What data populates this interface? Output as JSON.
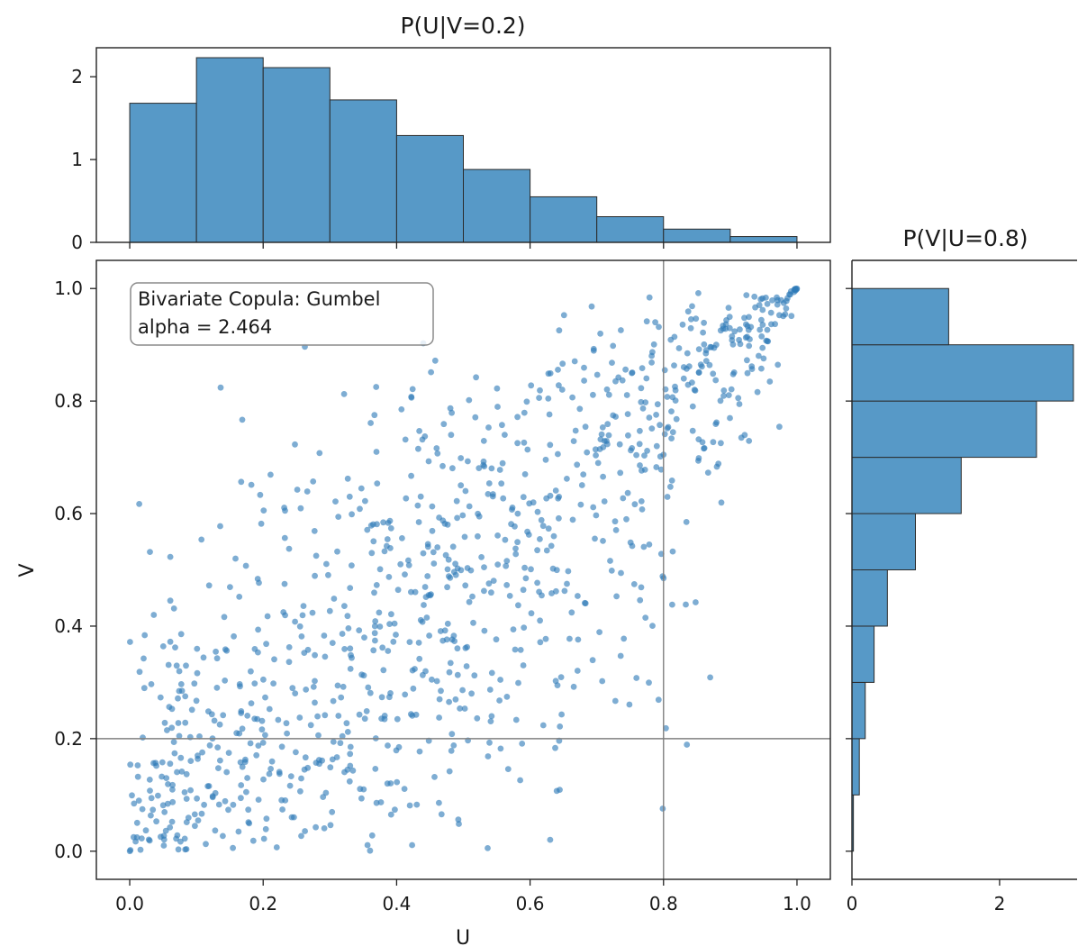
{
  "chart_data": [
    {
      "panel": "top-marginal",
      "type": "bar",
      "title": "P(U|V=0.2)",
      "bin_edges": [
        0.0,
        0.1,
        0.2,
        0.3,
        0.4,
        0.5,
        0.6,
        0.7,
        0.8,
        0.9,
        1.0
      ],
      "values": [
        1.68,
        2.23,
        2.11,
        1.72,
        1.29,
        0.88,
        0.55,
        0.31,
        0.16,
        0.07
      ],
      "xlim": [
        -0.05,
        1.05
      ],
      "ylim": [
        0,
        2.35
      ],
      "yticks": [
        0,
        1,
        2
      ],
      "ytick_labels": [
        "0",
        "1",
        "2"
      ],
      "grid": false
    },
    {
      "panel": "right-marginal",
      "type": "bar",
      "orientation": "horizontal",
      "title": "P(V|U=0.8)",
      "bin_edges": [
        0.0,
        0.1,
        0.2,
        0.3,
        0.4,
        0.5,
        0.6,
        0.7,
        0.8,
        0.9,
        1.0
      ],
      "values": [
        0.02,
        0.1,
        0.18,
        0.3,
        0.48,
        0.86,
        1.48,
        2.5,
        3.0,
        1.31
      ],
      "xlim": [
        0,
        3.05
      ],
      "xticks": [
        0,
        2
      ],
      "xtick_labels": [
        "0",
        "2"
      ],
      "ylim": [
        -0.05,
        1.05
      ],
      "grid": false
    },
    {
      "panel": "main",
      "type": "scatter",
      "xlabel": "U",
      "ylabel": "V",
      "xlim": [
        -0.05,
        1.05
      ],
      "ylim": [
        -0.05,
        1.05
      ],
      "xticks": [
        0.0,
        0.2,
        0.4,
        0.6,
        0.8,
        1.0
      ],
      "xtick_labels": [
        "0.0",
        "0.2",
        "0.4",
        "0.6",
        "0.8",
        "1.0"
      ],
      "yticks": [
        0.0,
        0.2,
        0.4,
        0.6,
        0.8,
        1.0
      ],
      "ytick_labels": [
        "0.0",
        "0.2",
        "0.4",
        "0.6",
        "0.8",
        "1.0"
      ],
      "reference_lines": {
        "vertical_x": 0.8,
        "horizontal_y": 0.2
      },
      "annotation_lines": [
        "Bivariate Copula: Gumbel",
        "alpha = 2.464"
      ],
      "annotation_placement": "top-left",
      "grid": false,
      "point_count": 1000,
      "points_note_sampling": "Gumbel copula, alpha 2.464"
    }
  ],
  "style": {
    "bar_fill": "#5799c7",
    "bar_edge": "#2b2b2b",
    "point_color": "#2f7ab8",
    "refline_color": "#808080",
    "frame_color": "#222222"
  }
}
